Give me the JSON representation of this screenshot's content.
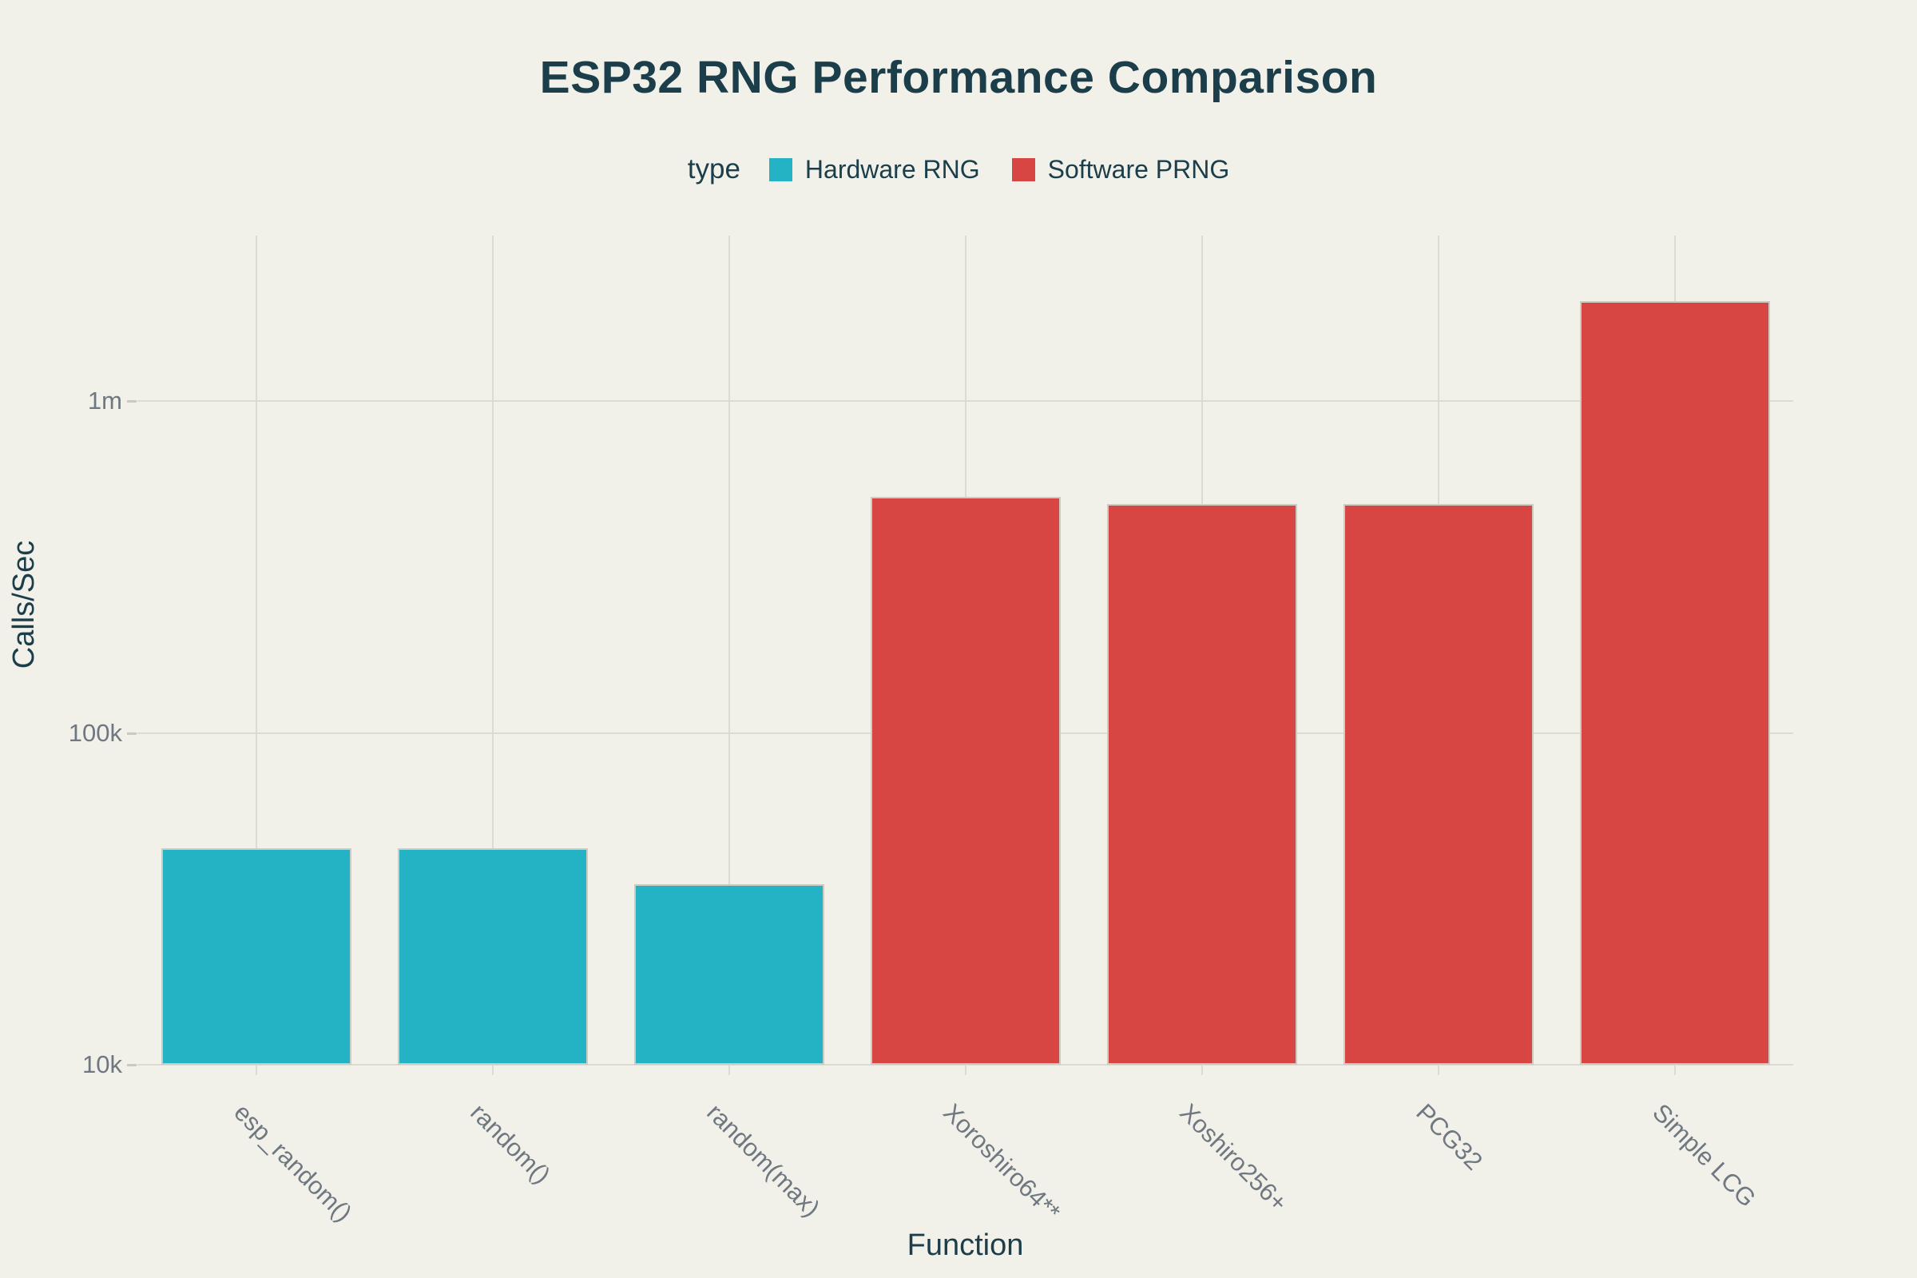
{
  "chart_data": {
    "type": "bar",
    "title": "ESP32 RNG Performance Comparison",
    "xlabel": "Function",
    "ylabel": "Calls/Sec",
    "y_scale": "log",
    "ylim": [
      10000,
      3160000
    ],
    "grid": true,
    "legend_position": "top",
    "legend": {
      "title": "type",
      "entries": [
        {
          "label": "Hardware RNG",
          "color": "#24b3c5"
        },
        {
          "label": "Software PRNG",
          "color": "#d84643"
        }
      ]
    },
    "yticks": [
      {
        "label": "10k",
        "value": 10000
      },
      {
        "label": "100k",
        "value": 100000
      },
      {
        "label": "1m",
        "value": 1000000
      }
    ],
    "categories": [
      "esp_random()",
      "random()",
      "random(max)",
      "Xoroshiro64**",
      "Xoshiro256+",
      "PCG32",
      "Simple LCG"
    ],
    "bars": [
      {
        "label": "esp_random()",
        "type": "Hardware RNG",
        "value": 45000
      },
      {
        "label": "random()",
        "type": "Hardware RNG",
        "value": 45000
      },
      {
        "label": "random(max)",
        "type": "Hardware RNG",
        "value": 35000
      },
      {
        "label": "Xoroshiro64**",
        "type": "Software PRNG",
        "value": 515000
      },
      {
        "label": "Xoshiro256+",
        "type": "Software PRNG",
        "value": 490000
      },
      {
        "label": "PCG32",
        "type": "Software PRNG",
        "value": 490000
      },
      {
        "label": "Simple LCG",
        "type": "Software PRNG",
        "value": 2000000
      }
    ]
  },
  "colors": {
    "background": "#f1f1ea",
    "gridline": "#dbdbd3",
    "tick_text": "#6f7880",
    "heading_text": "#1b3e4a",
    "bar_border": "#ccccc3"
  }
}
